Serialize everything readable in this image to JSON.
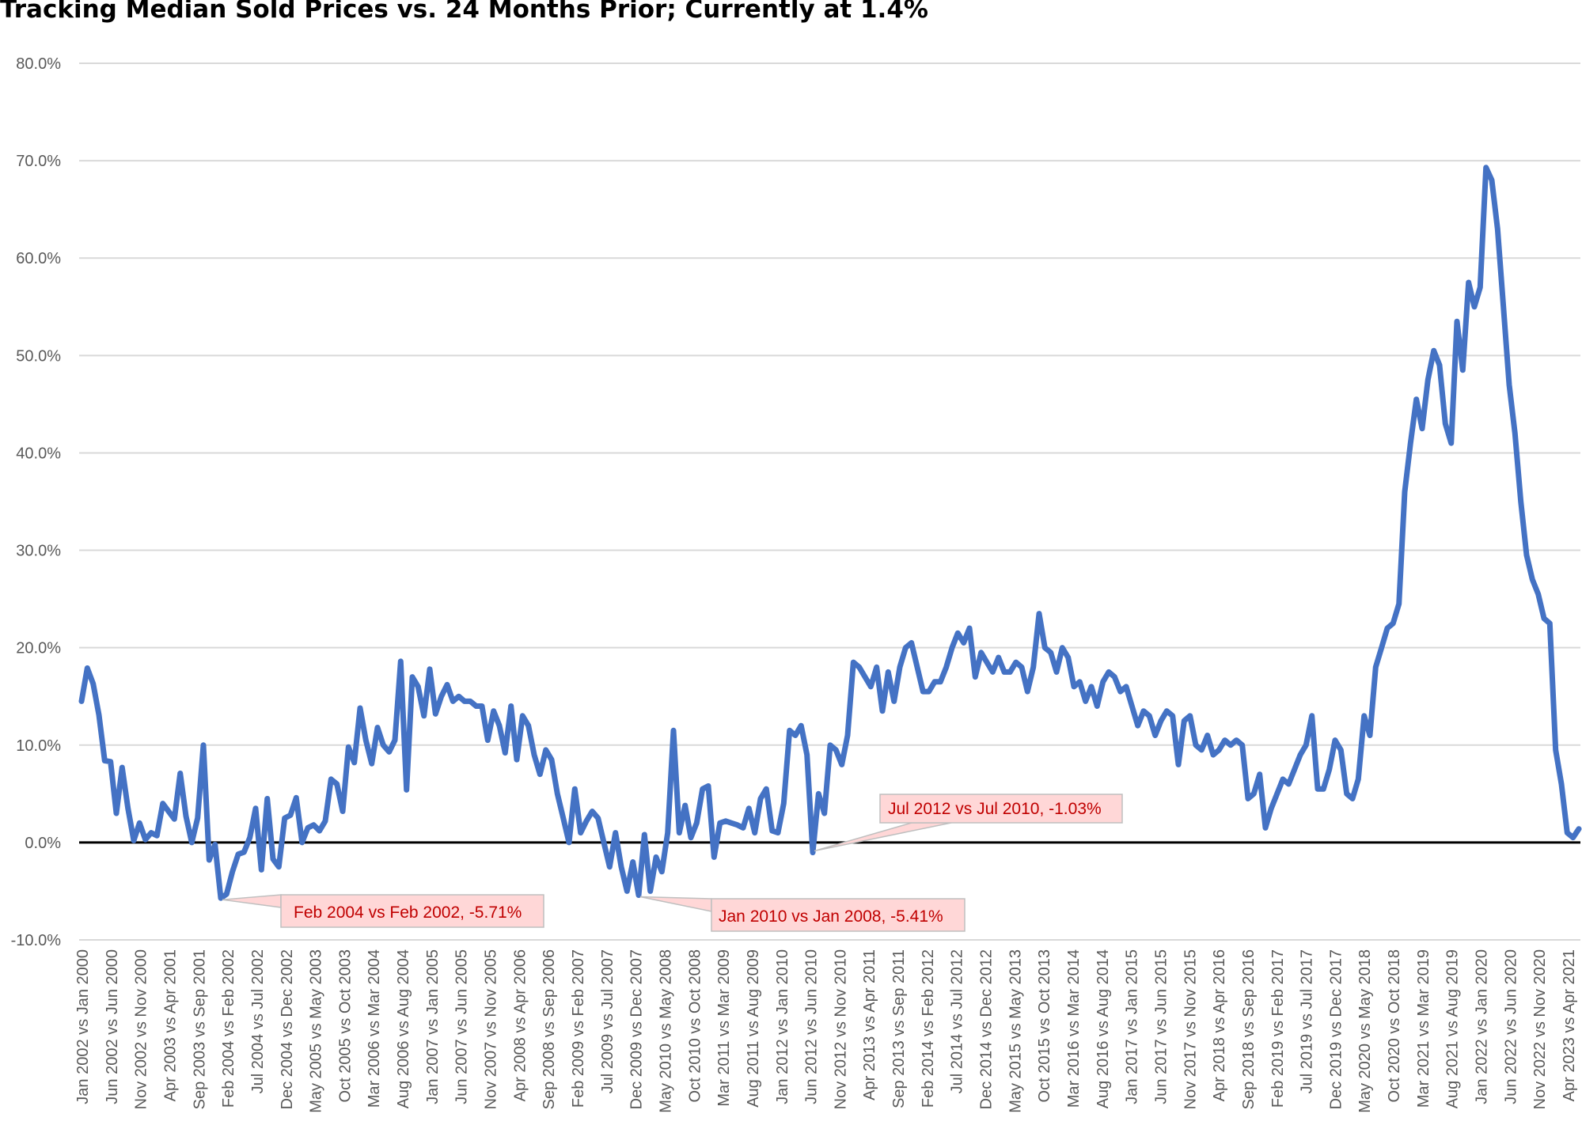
{
  "chart_data": {
    "type": "line",
    "title": "Tracking Median Sold Prices vs. 24 Months Prior; Currently at 1.4%",
    "xlabel": "",
    "ylabel": "",
    "ylim": [
      -10,
      80
    ],
    "y_ticks": [
      "80.0%",
      "70.0%",
      "60.0%",
      "50.0%",
      "40.0%",
      "30.0%",
      "20.0%",
      "10.0%",
      "0.0%",
      "-10.0%"
    ],
    "y_tick_values": [
      80,
      70,
      60,
      50,
      40,
      30,
      20,
      10,
      0,
      -10
    ],
    "grid": true,
    "zero_line": true,
    "x_tick_labels": [
      "Jan 2002 vs Jan 2000",
      "Jun 2002 vs Jun 2000",
      "Nov 2002 vs Nov 2000",
      "Apr 2003 vs Apr 2001",
      "Sep 2003 vs Sep 2001",
      "Feb 2004 vs Feb 2002",
      "Jul 2004 vs Jul 2002",
      "Dec 2004 vs Dec 2002",
      "May 2005 vs May 2003",
      "Oct 2005 vs Oct 2003",
      "Mar 2006 vs Mar 2004",
      "Aug 2006 vs Aug 2004",
      "Jan 2007 vs Jan 2005",
      "Jun 2007 vs Jun 2005",
      "Nov 2007 vs Nov 2005",
      "Apr 2008 vs Apr 2006",
      "Sep 2008 vs Sep 2006",
      "Feb 2009 vs Feb 2007",
      "Jul 2009 vs Jul 2007",
      "Dec 2009 vs Dec 2007",
      "May 2010 vs May 2008",
      "Oct 2010 vs Oct 2008",
      "Mar 2011 vs Mar 2009",
      "Aug 2011 vs Aug 2009",
      "Jan 2012 vs Jan 2010",
      "Jun 2012 vs Jun 2010",
      "Nov 2012 vs Nov 2010",
      "Apr 2013 vs Apr 2011",
      "Sep 2013 vs Sep 2011",
      "Feb 2014 vs Feb 2012",
      "Jul 2014 vs Jul 2012",
      "Dec 2014 vs Dec 2012",
      "May 2015 vs May 2013",
      "Oct 2015 vs Oct 2013",
      "Mar 2016 vs Mar 2014",
      "Aug 2016 vs Aug 2014",
      "Jan 2017 vs Jan 2015",
      "Jun 2017 vs Jun 2015",
      "Nov 2017 vs Nov 2015",
      "Apr 2018 vs Apr 2016",
      "Sep 2018 vs Sep 2016",
      "Feb 2019 vs Feb 2017",
      "Jul 2019 vs Jul 2017",
      "Dec 2019 vs Dec 2017",
      "May 2020 vs May 2018",
      "Oct 2020 vs Oct 2018",
      "Mar 2021 vs Mar 2019",
      "Aug 2021 vs Aug 2019",
      "Jan 2022 vs Jan 2020",
      "Jun 2022 vs Jun 2020",
      "Nov 2022 vs Nov 2020",
      "Apr 2023 vs Apr 2021"
    ],
    "series": [
      {
        "color": "#4472c4",
        "values": [
          14.5,
          17.9,
          16.3,
          13.1,
          8.4,
          8.3,
          3.0,
          7.7,
          3.5,
          0.2,
          2.0,
          0.3,
          1.0,
          0.7,
          4.0,
          3.2,
          2.4,
          7.1,
          2.7,
          0.0,
          2.5,
          10.0,
          -1.8,
          -0.2,
          -5.71,
          -5.3,
          -3.0,
          -1.2,
          -1.0,
          0.5,
          3.5,
          -2.8,
          4.5,
          -1.7,
          -2.5,
          2.5,
          2.8,
          4.6,
          0.0,
          1.5,
          1.8,
          1.2,
          2.2,
          6.5,
          6.0,
          3.2,
          9.8,
          8.2,
          13.8,
          10.5,
          8.1,
          11.8,
          10.0,
          9.3,
          10.5,
          18.6,
          5.4,
          17.0,
          16.0,
          13.0,
          17.8,
          13.2,
          15.0,
          16.2,
          14.5,
          15.0,
          14.5,
          14.5,
          14.0,
          14.0,
          10.5,
          13.5,
          12.0,
          9.2,
          14.0,
          8.5,
          13.0,
          12.0,
          9.0,
          7.0,
          9.5,
          8.5,
          5.0,
          2.5,
          0.0,
          5.5,
          1.0,
          2.2,
          3.2,
          2.5,
          0.0,
          -2.5,
          1.0,
          -2.5,
          -5.0,
          -2.0,
          -5.41,
          0.8,
          -5.0,
          -1.5,
          -3.0,
          1.0,
          11.5,
          1.0,
          3.8,
          0.5,
          2.0,
          5.5,
          5.8,
          -1.5,
          2.0,
          2.2,
          2.0,
          1.8,
          1.5,
          3.5,
          1.0,
          4.5,
          5.5,
          1.2,
          1.0,
          4.0,
          11.5,
          11.0,
          12.0,
          9.0,
          -1.03,
          5.0,
          3.0,
          10.0,
          9.5,
          8.0,
          11.0,
          18.5,
          18.0,
          17.0,
          16.0,
          18.0,
          13.5,
          17.5,
          14.5,
          18.0,
          20.0,
          20.5,
          18.0,
          15.5,
          15.5,
          16.5,
          16.5,
          18.0,
          20.0,
          21.5,
          20.5,
          22.0,
          17.0,
          19.5,
          18.5,
          17.5,
          19.0,
          17.5,
          17.5,
          18.5,
          18.0,
          15.5,
          18.0,
          23.5,
          20.0,
          19.5,
          17.5,
          20.0,
          19.0,
          16.0,
          16.5,
          14.5,
          16.0,
          14.0,
          16.5,
          17.5,
          17.0,
          15.5,
          16.0,
          14.0,
          12.0,
          13.5,
          13.0,
          11.0,
          12.5,
          13.5,
          13.0,
          8.0,
          12.5,
          13.0,
          10.0,
          9.5,
          11.0,
          9.0,
          9.5,
          10.5,
          10.0,
          10.5,
          10.0,
          4.5,
          5.0,
          7.0,
          1.5,
          3.5,
          5.0,
          6.5,
          6.0,
          7.5,
          9.0,
          10.0,
          13.0,
          5.5,
          5.5,
          7.5,
          10.5,
          9.5,
          5.0,
          4.5,
          6.5,
          13.0,
          11.0,
          18.0,
          20.0,
          22.0,
          22.5,
          24.5,
          36.0,
          41.0,
          45.5,
          42.5,
          47.5,
          50.5,
          49.0,
          43.0,
          41.0,
          53.5,
          48.5,
          57.5,
          55.0,
          57.0,
          69.3,
          68.0,
          63.0,
          55.0,
          47.0,
          42.0,
          35.0,
          29.5,
          27.0,
          25.5,
          23.0,
          22.5,
          9.5,
          6.0,
          1.0,
          0.5,
          1.4
        ]
      }
    ],
    "annotations": [
      {
        "text": "Feb 2004 vs Feb 2002, -5.71%",
        "point_index": 24,
        "value": -5.71
      },
      {
        "text": "Jan 2010 vs Jan 2008, -5.41%",
        "point_index": 96,
        "value": -5.41
      },
      {
        "text": "Jul 2012 vs Jul 2010, -1.03%",
        "point_index": 126,
        "value": -1.03
      }
    ]
  }
}
